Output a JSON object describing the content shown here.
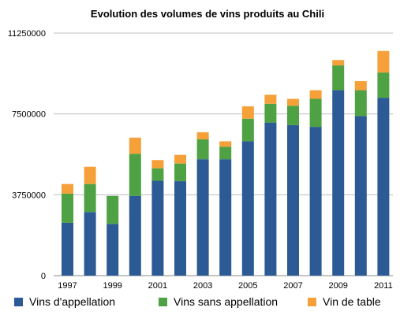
{
  "chart_data": {
    "type": "bar",
    "stacked": true,
    "title": "Evolution des volumes de vins produits au Chili",
    "xlabel": "",
    "ylabel": "",
    "ylim": [
      0,
      11250000
    ],
    "y_ticks": [
      0,
      3750000,
      7500000,
      11250000
    ],
    "x_tick_labels": [
      "1997",
      "1999",
      "2001",
      "2003",
      "2005",
      "2007",
      "2009",
      "2011"
    ],
    "categories": [
      "1997",
      "1998",
      "1999",
      "2000",
      "2001",
      "2002",
      "2003",
      "2004",
      "2005",
      "2006",
      "2007",
      "2008",
      "2009",
      "2010",
      "2011"
    ],
    "series": [
      {
        "name": "Vins d'appellation",
        "color": "#2c5a95",
        "values": [
          2450000,
          2950000,
          2400000,
          3700000,
          4400000,
          4380000,
          5400000,
          5400000,
          6230000,
          7100000,
          6980000,
          6900000,
          8600000,
          7400000,
          8250000
        ]
      },
      {
        "name": "Vins sans appellation",
        "color": "#4ea243",
        "values": [
          1350000,
          1300000,
          1300000,
          1950000,
          580000,
          820000,
          920000,
          580000,
          1050000,
          870000,
          900000,
          1300000,
          1150000,
          1200000,
          1170000
        ]
      },
      {
        "name": "Vin de table",
        "color": "#f6a03a",
        "values": [
          450000,
          800000,
          0,
          750000,
          380000,
          400000,
          330000,
          250000,
          570000,
          420000,
          320000,
          400000,
          250000,
          420000,
          1000000
        ]
      }
    ],
    "legend_position": "bottom",
    "grid": true
  }
}
